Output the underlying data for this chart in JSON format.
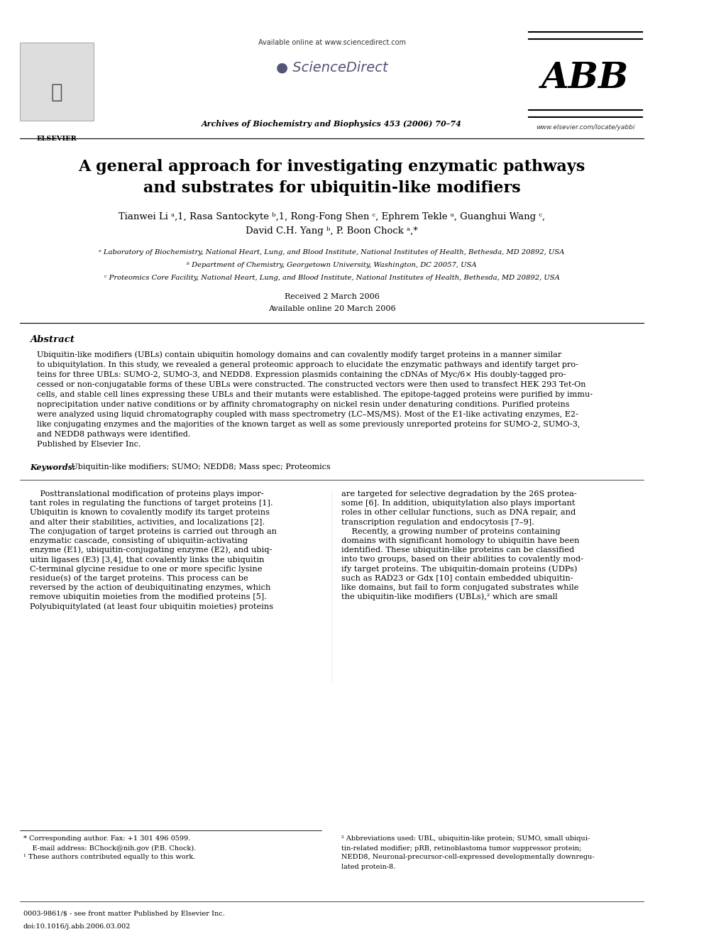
{
  "bg_color": "#ffffff",
  "title_line1": "A general approach for investigating enzymatic pathways",
  "title_line2": "and substrates for ubiquitin-like modifiers",
  "authors_line1": "Tianwei Li ᵃ,1, Rasa Santockyte ᵇ,1, Rong-Fong Shen ᶜ, Ephrem Tekle ᵃ, Guanghui Wang ᶜ,",
  "authors_line2": "David C.H. Yang ᵇ, P. Boon Chock ᵃ,*",
  "affil_a": "ᵃ Laboratory of Biochemistry, National Heart, Lung, and Blood Institute, National Institutes of Health, Bethesda, MD 20892, USA",
  "affil_b": "ᵇ Department of Chemistry, Georgetown University, Washington, DC 20057, USA",
  "affil_c": "ᶜ Proteomics Core Facility, National Heart, Lung, and Blood Institute, National Institutes of Health, Bethesda, MD 20892, USA",
  "received": "Received 2 March 2006",
  "available": "Available online 20 March 2006",
  "journal": "Archives of Biochemistry and Biophysics 453 (2006) 70–74",
  "available_online": "Available online at www.sciencedirect.com",
  "website": "www.elsevier.com/locate/yabbi",
  "abstract_label": "Abstract",
  "abstract_text": "Ubiquitin-like modifiers (UBLs) contain ubiquitin homology domains and can covalently modify target proteins in a manner similar to ubiquitylation. In this study, we revealed a general proteomic approach to elucidate the enzymatic pathways and identify target proteins for three UBLs: SUMO-2, SUMO-3, and NEDD8. Expression plasmids containing the cDNAs of Myc/6× His doubly-tagged processed or non-conjugatable forms of these UBLs were constructed. The constructed vectors were then used to transfect HEK 293 Tet-On cells, and stable cell lines expressing these UBLs and their mutants were established. The epitope-tagged proteins were purified by immunoprecipitation under native conditions or by affinity chromatography on nickel resin under denaturing conditions. Purified proteins were analyzed using liquid chromatography coupled with mass spectrometry (LC–MS/MS). Most of the E1-like activating enzymes, E2-like conjugating enzymes and the majorities of the known target as well as some previously unreported proteins for SUMO-2, SUMO-3, and NEDD8 pathways were identified.\nPublished by Elsevier Inc.",
  "keywords_label": "Keywords:",
  "keywords": "Ubiquitin-like modifiers; SUMO; NEDD8; Mass spec; Proteomics",
  "body_col1": "Posttranslational modification of proteins plays important roles in regulating the functions of target proteins [1]. Ubiquitin is known to covalently modify its target proteins and alter their stabilities, activities, and localizations [2]. The conjugation of target proteins is carried out through an enzymatic cascade, consisting of ubiquitin-activating enzyme (E1), ubiquitin-conjugating enzyme (E2), and ubiquitin ligases (E3) [3,4], that covalently links the ubiquitin C-terminal glycine residue to one or more specific lysine residue(s) of the target proteins. This process can be reversed by the action of deubiquitinating enzymes, which remove ubiquitin moieties from the modified proteins [5]. Polyubiquitylated (at least four ubiquitin moieties) proteins",
  "body_col2": "are targeted for selective degradation by the 26S proteasome [6]. In addition, ubiquitylation also plays important roles in other cellular functions, such as DNA repair, and transcription regulation and endocytosis [7–9].\n    Recently, a growing number of proteins containing domains with significant homology to ubiquitin have been identified. These ubiquitin-like proteins can be classified into two groups, based on their abilities to covalently modify target proteins. The ubiquitin-domain proteins (UDPs) such as RAD23 or Gdx [10] contain embedded ubiquitin-like domains, but fail to form conjugated substrates while the ubiquitin-like modifiers (UBLs),² which are small",
  "footnote_star": "* Corresponding author. Fax: +1 301 496 0599.",
  "footnote_email": "E-mail address: BChock@nih.gov (P.B. Chock).",
  "footnote_1": "¹ These authors contributed equally to this work.",
  "footnote_2": "² Abbreviations used: UBL, ubiquitin-like protein; SUMO, small ubiquitin-related modifier; pRB, retinoblastoma tumor suppressor protein; NEDD8, Neuronal-precursor-cell-expressed developmentally downregulated protein-8.",
  "bottom_issn": "0003-9861/$ - see front matter Published by Elsevier Inc.",
  "bottom_doi": "doi:10.1016/j.abb.2006.03.002"
}
